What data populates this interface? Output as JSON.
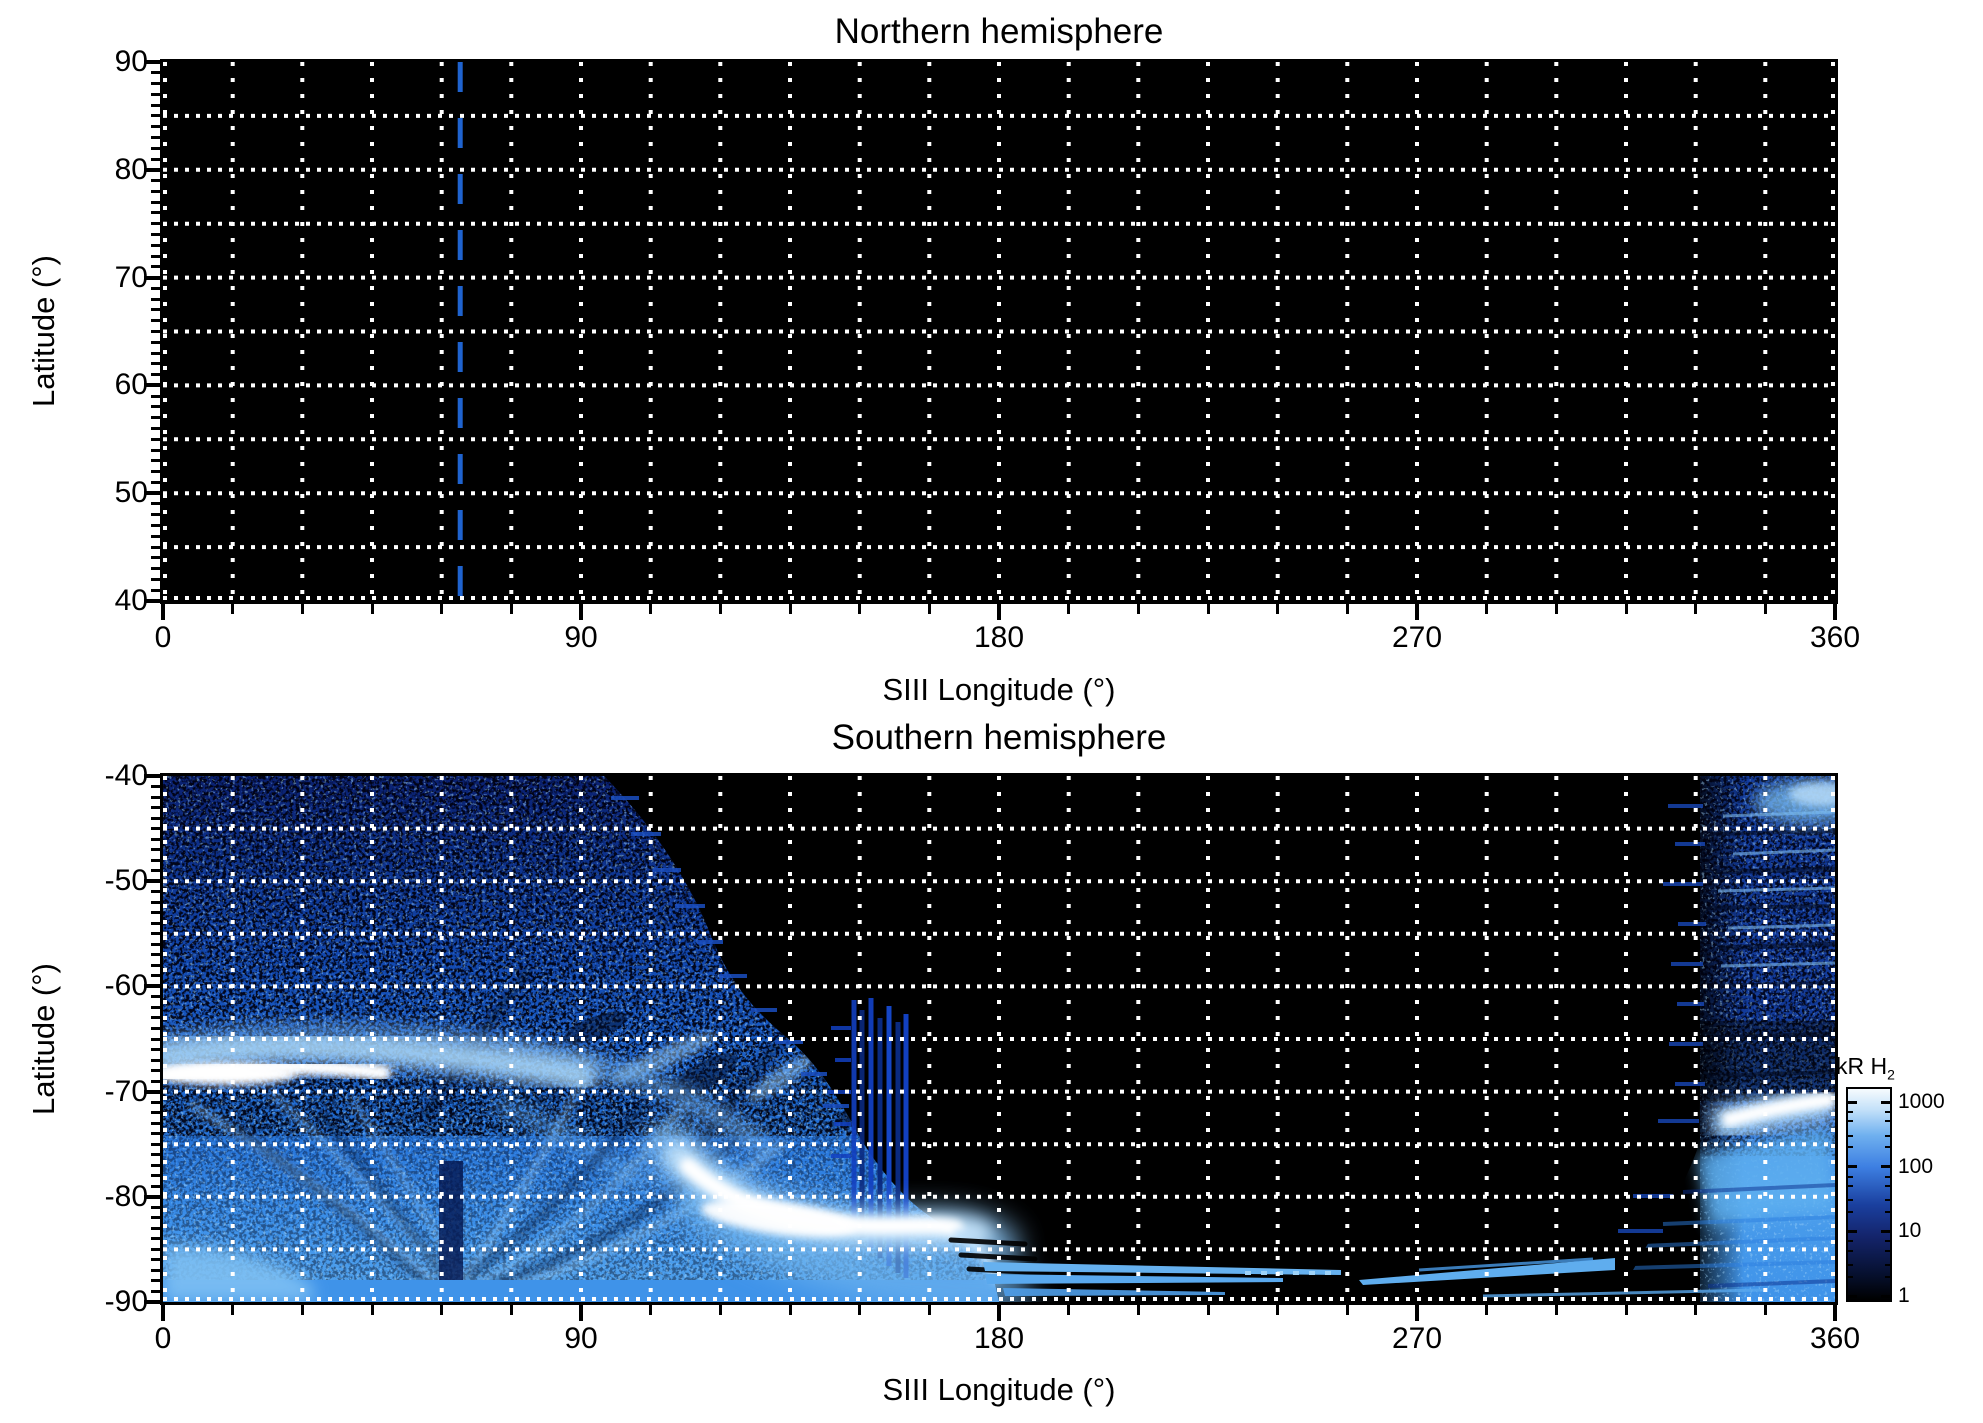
{
  "figure": {
    "background": "#ffffff",
    "reference_line_color": "#1f63cf",
    "grid_color": "#ffffff"
  },
  "north_panel": {
    "title": "Northern hemisphere",
    "xlabel": "SIII Longitude (°)",
    "ylabel": "Latitude (°)",
    "xtick_labels": [
      "0",
      "90",
      "180",
      "270",
      "360"
    ],
    "xtick_values": [
      0,
      90,
      180,
      270,
      360
    ],
    "ytick_labels": [
      "90",
      "80",
      "70",
      "60",
      "50",
      "40"
    ],
    "ytick_values": [
      90,
      80,
      70,
      60,
      50,
      40
    ],
    "reference_line_longitude_deg": 64
  },
  "south_panel": {
    "title": "Southern hemisphere",
    "xlabel": "SIII Longitude (°)",
    "ylabel": "Latitude (°)",
    "xtick_labels": [
      "0",
      "90",
      "180",
      "270",
      "360"
    ],
    "xtick_values": [
      0,
      90,
      180,
      270,
      360
    ],
    "ytick_labels": [
      "-40",
      "-50",
      "-60",
      "-70",
      "-80",
      "-90"
    ],
    "ytick_values": [
      -40,
      -50,
      -60,
      -70,
      -80,
      -90
    ]
  },
  "colorbar": {
    "title_main": "kR H",
    "title_sub": "2",
    "tick_labels": [
      "1000",
      "100",
      "10",
      "1"
    ],
    "tick_values": [
      1000,
      100,
      10,
      1
    ],
    "scale": "log10"
  },
  "chart_data": {
    "type": "heatmap",
    "panels": [
      {
        "title": "Northern hemisphere",
        "xlabel": "SIII Longitude (°)",
        "ylabel": "Latitude (°)",
        "xlim": [
          0,
          360
        ],
        "ylim": [
          40,
          90
        ],
        "xticks": [
          0,
          90,
          180,
          270,
          360
        ],
        "yticks": [
          40,
          50,
          60,
          70,
          80,
          90
        ],
        "grid": {
          "lon_step_deg": 15,
          "lat_step_deg": 5,
          "style": "white dotted"
        },
        "content": "no detected emission - entire map at/below ~1 kR (black)",
        "annotations": [
          {
            "type": "vertical-dashed-line",
            "longitude_deg": 64,
            "color": "#1f63cf"
          }
        ]
      },
      {
        "title": "Southern hemisphere",
        "xlabel": "SIII Longitude (°)",
        "ylabel": "Latitude (°)",
        "xlim": [
          0,
          360
        ],
        "ylim": [
          -90,
          -40
        ],
        "xticks": [
          0,
          90,
          180,
          270,
          360
        ],
        "yticks": [
          -90,
          -80,
          -70,
          -60,
          -50,
          -40
        ],
        "grid": {
          "lon_step_deg": 15,
          "lat_step_deg": 5,
          "style": "white dotted"
        },
        "features": [
          {
            "name": "main-auroral-arc-west",
            "lon_range": [
              0,
              60
            ],
            "lat_center": -68.5,
            "peak_kR": 1000,
            "appearance": "bright white arc fading to light blue by lon 90"
          },
          {
            "name": "bright-auroral-crescent",
            "lon_range": [
              100,
              175
            ],
            "lat_range": [
              -75,
              -85
            ],
            "peak_kR": 1000,
            "appearance": "white crescent with light-blue glow to bottom edge"
          },
          {
            "name": "main-auroral-arc-east",
            "lon_range": [
              335,
              360
            ],
            "lat_center": -71,
            "peak_kR": 1000,
            "appearance": "white arc wrapping toward lon 0"
          },
          {
            "name": "diffuse-speckled-emission",
            "lon_range": [
              0,
              150
            ],
            "lat_range": [
              -40,
              -90
            ],
            "kR_range": [
              1,
              100
            ],
            "appearance": "granular blue speckle, curved flow streaks converging near lon 62 at bottom, dark column at lon 60-65"
          },
          {
            "name": "striped-curtain",
            "lon_range": [
              148,
              161
            ],
            "lat_range": [
              -61,
              -85
            ],
            "kR_range": [
              1,
              30
            ],
            "appearance": "vertical deep-blue stripes"
          },
          {
            "name": "diffuse-speckled-column",
            "lon_range": [
              331,
              360
            ],
            "lat_range": [
              -40,
              -68
            ],
            "kR_range": [
              1,
              100
            ],
            "appearance": "streaky speckled blue column with feathered left edge"
          },
          {
            "name": "polar-streak-wedges",
            "lon_range": [
              176,
              315
            ],
            "lat_range": [
              -84,
              -90
            ],
            "kR_range": [
              30,
              200
            ],
            "appearance": "light-blue horizontal wedges meeting near lon 255 with black notches"
          },
          {
            "name": "no-data-region",
            "lon_range": [
              150,
              331
            ],
            "lat_range": [
              -40,
              -84
            ],
            "kR": 0,
            "appearance": "black"
          }
        ]
      }
    ],
    "colorbar": {
      "label": "kR H2",
      "scale": "log10",
      "ticks": [
        1,
        10,
        100,
        1000
      ],
      "range_kR": [
        1,
        1000
      ],
      "orientation": "vertical",
      "colormap": [
        "#000000",
        "#06102e",
        "#14246b",
        "#1a3f9e",
        "#3d7fe2",
        "#6fb0ef",
        "#c2e0f9",
        "#f6fbfe"
      ]
    }
  }
}
